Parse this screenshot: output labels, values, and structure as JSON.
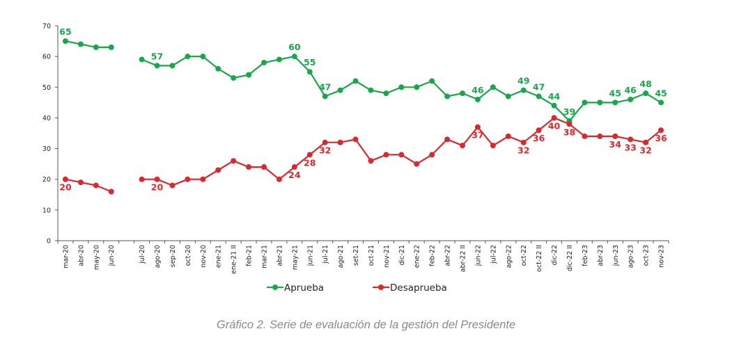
{
  "chart_data": {
    "type": "line",
    "title": "",
    "xlabel": "",
    "ylabel": "",
    "ylim": [
      0,
      70
    ],
    "yticks": [
      0,
      10,
      20,
      30,
      40,
      50,
      60,
      70
    ],
    "grid": false,
    "legend_position": "bottom-center",
    "categories": [
      "mar-20",
      "abr-20",
      "may-20",
      "jun-20",
      "",
      "jul-20",
      "ago-20",
      "sep-20",
      "oct-20",
      "nov-20",
      "ene-21",
      "ene-21 II",
      "feb-21",
      "mar-21",
      "abr-21",
      "may-21",
      "jun-21",
      "jul-21",
      "ago-21",
      "set-21",
      "oct-21",
      "nov-21",
      "dic-21",
      "ene-22",
      "feb-22",
      "abr-22",
      "abr-22 II",
      "jun-22",
      "jul-22",
      "ago-22",
      "oct-22",
      "oct-22 II",
      "dic-22",
      "dic-22 II",
      "feb-23",
      "abr-23",
      "jun-23",
      "ago-23",
      "oct-23",
      "nov-23"
    ],
    "series": [
      {
        "name": "Aprueba",
        "color": "#1aa64a",
        "values": [
          65,
          64,
          63,
          63,
          null,
          59,
          57,
          57,
          60,
          60,
          56,
          53,
          54,
          58,
          59,
          60,
          55,
          47,
          49,
          52,
          49,
          48,
          50,
          50,
          52,
          47,
          48,
          46,
          50,
          47,
          49,
          47,
          44,
          39,
          45,
          45,
          45,
          46,
          48,
          45
        ],
        "labels": {
          "0": "65",
          "6": "57",
          "15": "60",
          "16": "55",
          "17": "47",
          "27": "46",
          "30": "49",
          "31": "47",
          "32": "44",
          "33": "39",
          "36": "45",
          "37": "46",
          "38": "48",
          "39": "45"
        }
      },
      {
        "name": "Desaprueba",
        "color": "#d8292f",
        "values": [
          20,
          19,
          18,
          16,
          null,
          20,
          20,
          18,
          20,
          20,
          23,
          26,
          24,
          24,
          20,
          24,
          28,
          32,
          32,
          33,
          26,
          28,
          28,
          25,
          28,
          33,
          31,
          37,
          31,
          34,
          32,
          36,
          40,
          38,
          34,
          34,
          34,
          33,
          32,
          36
        ],
        "labels": {
          "0": "20",
          "6": "20",
          "15": "24",
          "16": "28",
          "17": "32",
          "27": "37",
          "30": "32",
          "31": "36",
          "32": "40",
          "33": "38",
          "36": "34",
          "37": "33",
          "38": "32",
          "39": "36"
        }
      }
    ]
  },
  "caption": "Gráfico 2. Serie de evaluación de la gestión del Presidente"
}
